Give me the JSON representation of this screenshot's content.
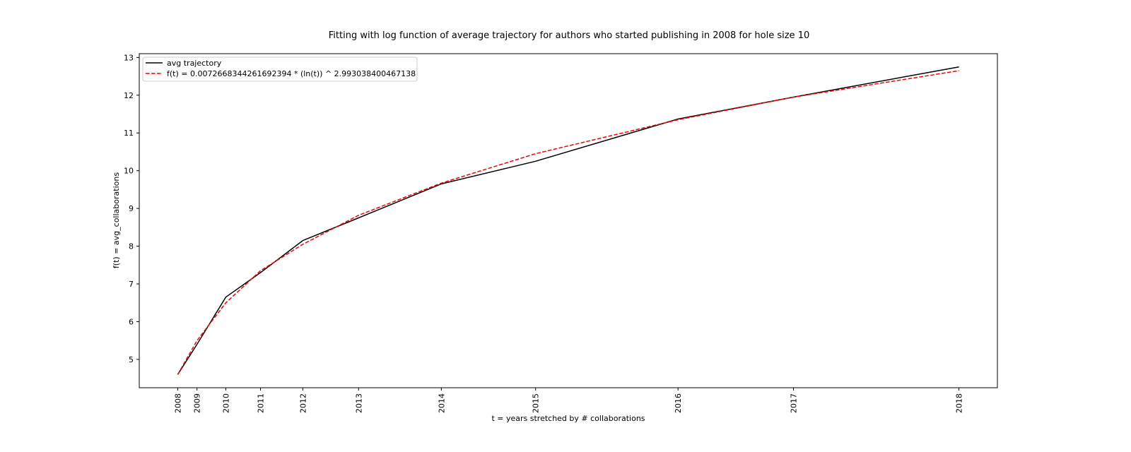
{
  "chart_data": {
    "type": "line",
    "title": "Fitting with log function of average trajectory for authors who started publishing in 2008 for hole size 10",
    "xlabel": "t = years stretched by # collaborations",
    "ylabel": "f(t) = avg_collaborations",
    "ylim": [
      4.25,
      13.1
    ],
    "yticks": [
      5,
      6,
      7,
      8,
      9,
      10,
      11,
      12,
      13
    ],
    "legend_position": "upper-left",
    "grid": false,
    "x": [
      2008,
      2009,
      2010,
      2011,
      2012,
      2013,
      2014,
      2015,
      2016,
      2017,
      2018
    ],
    "x_positions": [
      2.0,
      3.0,
      4.5,
      6.3,
      8.5,
      11.4,
      15.7,
      20.6,
      28.0,
      34.0,
      42.6
    ],
    "xlim": [
      0.0,
      44.6
    ],
    "series": [
      {
        "name": "avg trajectory",
        "color": "#000000",
        "dash": "solid",
        "values": [
          4.6,
          5.4,
          6.65,
          7.3,
          8.15,
          8.75,
          9.65,
          10.25,
          11.37,
          11.95,
          12.75
        ]
      },
      {
        "name": "f(t) = 0.0072668344261692394 * (ln(t)) ^ 2.993038400467138",
        "color": "#ff0000",
        "dash": "dashed",
        "values": [
          4.6,
          5.5,
          6.5,
          7.35,
          8.05,
          8.82,
          9.67,
          10.45,
          11.35,
          11.95,
          12.65
        ]
      }
    ]
  }
}
